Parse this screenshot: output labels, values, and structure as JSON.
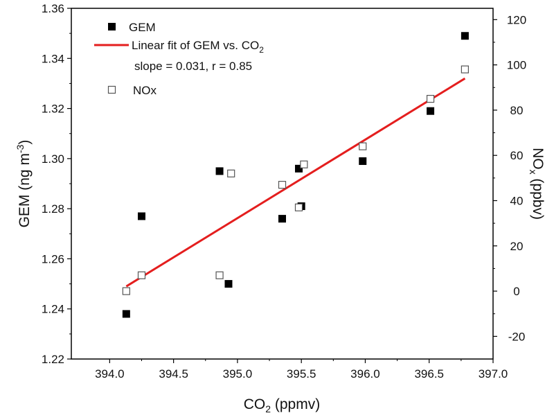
{
  "chart_data": {
    "type": "scatter",
    "xlabel": {
      "base": "CO",
      "sub": "2",
      "unit": " (ppmv)"
    },
    "ylabel_left": {
      "text": "GEM (ng m",
      "sup": "-3",
      "end": ")"
    },
    "ylabel_right": {
      "text": "NO",
      "sub": "x",
      "unit": " (ppbv)"
    },
    "xlim": [
      393.7,
      397.0
    ],
    "ylim_left": [
      1.22,
      1.36
    ],
    "ylim_right": [
      -30,
      125
    ],
    "x_ticks": [
      394.0,
      394.5,
      395.0,
      395.5,
      396.0,
      396.5,
      397.0
    ],
    "x_tick_labels": [
      "394.0",
      "394.5",
      "395.0",
      "395.5",
      "396.0",
      "396.5",
      "397.0"
    ],
    "y_left_ticks": [
      1.22,
      1.24,
      1.26,
      1.28,
      1.3,
      1.32,
      1.34,
      1.36
    ],
    "y_left_tick_labels": [
      "1.22",
      "1.24",
      "1.26",
      "1.28",
      "1.30",
      "1.32",
      "1.34",
      "1.36"
    ],
    "y_right_ticks": [
      -20,
      0,
      20,
      40,
      60,
      80,
      100,
      120
    ],
    "y_right_tick_labels": [
      "-20",
      "0",
      "20",
      "40",
      "60",
      "80",
      "100",
      "120"
    ],
    "series": [
      {
        "name": "GEM",
        "axis": "left",
        "marker": "filled-square",
        "color": "#000000",
        "points": [
          {
            "x": 394.13,
            "y": 1.238
          },
          {
            "x": 394.25,
            "y": 1.277
          },
          {
            "x": 394.86,
            "y": 1.295
          },
          {
            "x": 394.93,
            "y": 1.25
          },
          {
            "x": 395.35,
            "y": 1.276
          },
          {
            "x": 395.5,
            "y": 1.281
          },
          {
            "x": 395.48,
            "y": 1.296
          },
          {
            "x": 395.98,
            "y": 1.299
          },
          {
            "x": 396.51,
            "y": 1.319
          },
          {
            "x": 396.78,
            "y": 1.349
          }
        ]
      },
      {
        "name": "NOx",
        "axis": "right",
        "marker": "open-square",
        "color": "#555555",
        "points": [
          {
            "x": 394.13,
            "y": 0
          },
          {
            "x": 394.25,
            "y": 7
          },
          {
            "x": 394.86,
            "y": 7
          },
          {
            "x": 394.95,
            "y": 52
          },
          {
            "x": 395.35,
            "y": 47
          },
          {
            "x": 395.48,
            "y": 37
          },
          {
            "x": 395.52,
            "y": 56
          },
          {
            "x": 395.98,
            "y": 64
          },
          {
            "x": 396.51,
            "y": 85
          },
          {
            "x": 396.78,
            "y": 98
          }
        ]
      }
    ],
    "fit": {
      "name": "Linear fit of GEM vs. CO",
      "name_sub": "2",
      "axis": "left",
      "color": "#e41e1e",
      "x": [
        394.13,
        396.78
      ],
      "y": [
        1.249,
        1.332
      ],
      "annotation": "slope = 0.031, r = 0.85"
    },
    "legend_position": "top-left",
    "grid": false
  }
}
